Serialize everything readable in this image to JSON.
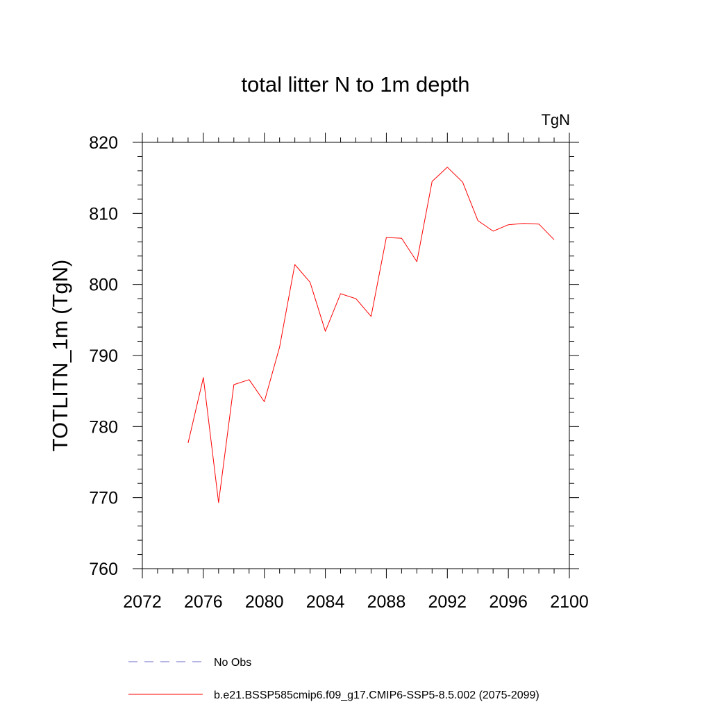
{
  "chart_data": {
    "type": "line",
    "title": "total litter N to 1m depth",
    "units_label": "TgN",
    "ylabel": "TOTLITN_1m  (TgN)",
    "xlabel": "",
    "xlim": [
      2072,
      2100
    ],
    "ylim": [
      760,
      820
    ],
    "x_ticks": [
      2072,
      2076,
      2080,
      2084,
      2088,
      2092,
      2096,
      2100
    ],
    "y_ticks": [
      760,
      770,
      780,
      790,
      800,
      810,
      820
    ],
    "grid": false,
    "legend_position": "bottom",
    "series": [
      {
        "name": "b.e21.BSSP585cmip6.f09_g17.CMIP6-SSP5-8.5.002 (2075-2099)",
        "color": "#ff0000",
        "style": "solid",
        "x": [
          2075,
          2076,
          2077,
          2078,
          2079,
          2080,
          2081,
          2082,
          2083,
          2084,
          2085,
          2086,
          2087,
          2088,
          2089,
          2090,
          2091,
          2092,
          2093,
          2094,
          2095,
          2096,
          2097,
          2098,
          2099
        ],
        "y": [
          777.7,
          786.9,
          769.3,
          785.9,
          786.6,
          783.5,
          791.2,
          802.8,
          800.3,
          793.4,
          798.7,
          798.0,
          795.5,
          806.6,
          806.5,
          803.2,
          814.5,
          816.5,
          814.4,
          809.0,
          807.5,
          808.4,
          808.6,
          808.5,
          806.3
        ]
      }
    ],
    "legend": [
      {
        "label": "No Obs",
        "color": "#6b6bc8",
        "style": "dashed"
      },
      {
        "label": "b.e21.BSSP585cmip6.f09_g17.CMIP6-SSP5-8.5.002 (2075-2099)",
        "color": "#ff0000",
        "style": "solid"
      }
    ]
  }
}
